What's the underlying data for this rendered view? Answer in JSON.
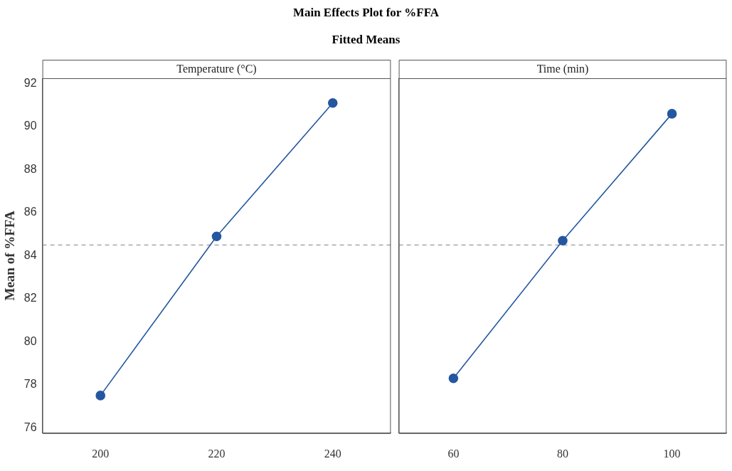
{
  "chart_data": [
    {
      "type": "line",
      "title": "Main Effects Plot for %FFA",
      "subtitle": "Fitted Means",
      "xlabel": "Temperature (°C)",
      "ylabel": "Mean of %FFA",
      "categories": [
        "200",
        "220",
        "240"
      ],
      "series": [
        {
          "color": "#2457a0",
          "values": [
            77.5,
            84.9,
            91.1
          ]
        }
      ],
      "ylim": [
        75.75,
        92.25
      ],
      "yticks": [
        76,
        78,
        80,
        82,
        84,
        86,
        88,
        90,
        92
      ],
      "marker": "circle",
      "ref_lines": [
        {
          "axis": "y",
          "value": 84.5,
          "color": "#999999",
          "line_style": "dashed"
        }
      ]
    },
    {
      "type": "line",
      "xlabel": "Time (min)",
      "categories": [
        "60",
        "80",
        "100"
      ],
      "series": [
        {
          "color": "#2457a0",
          "values": [
            78.3,
            84.7,
            90.6
          ]
        }
      ],
      "ylim": [
        75.75,
        92.25
      ],
      "yticks": [
        76,
        78,
        80,
        82,
        84,
        86,
        88,
        90,
        92
      ],
      "marker": "circle",
      "tick_labels": "x",
      "ref_lines": [
        {
          "axis": "y",
          "value": 84.5,
          "color": "#999999",
          "line_style": "dashed"
        }
      ]
    }
  ]
}
